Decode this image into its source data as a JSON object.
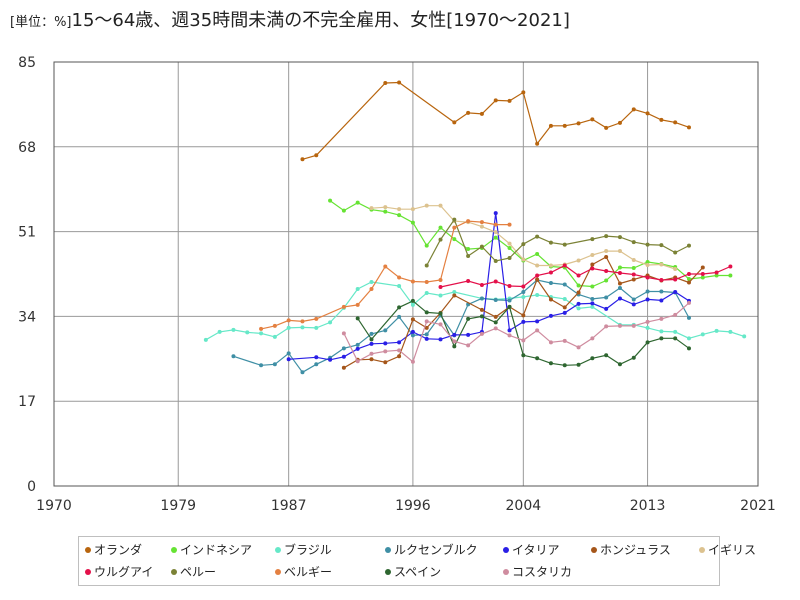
{
  "chart_data": {
    "type": "line",
    "title": "15～64歳、週35時間未満の不完全雇用、女性[1970～2021]",
    "unit_label": "[単位：%]",
    "xlim": [
      1970,
      2021
    ],
    "ylim": [
      0,
      85
    ],
    "x_ticks": [
      1970,
      1979,
      1987,
      1996,
      2004,
      2013,
      2021
    ],
    "y_ticks": [
      0,
      17,
      34,
      51,
      68,
      85
    ],
    "grid": true,
    "legend_position": "bottom",
    "series": [
      {
        "name": "オランダ",
        "color": "#b8650e",
        "x": [
          1988,
          1989,
          1994,
          1995,
          1999,
          2000,
          2001,
          2002,
          2003,
          2004,
          2005,
          2006,
          2007,
          2008,
          2009,
          2010,
          2011,
          2012,
          2013,
          2014,
          2015,
          2016
        ],
        "y": [
          65.5,
          66.3,
          80.8,
          80.9,
          72.9,
          74.8,
          74.6,
          77.3,
          77.2,
          78.9,
          68.6,
          72.2,
          72.2,
          72.7,
          73.5,
          71.8,
          72.8,
          75.5,
          74.7,
          73.4,
          72.9,
          71.9
        ]
      },
      {
        "name": "インドネシア",
        "color": "#66e333",
        "x": [
          1990,
          1991,
          1992,
          1993,
          1994,
          1995,
          1996,
          1997,
          1998,
          1999,
          2000,
          2001,
          2002,
          2003,
          2004,
          2005,
          2006,
          2007,
          2008,
          2009,
          2010,
          2011,
          2012,
          2013,
          2014,
          2015,
          2016,
          2017,
          2018,
          2019
        ],
        "y": [
          57.2,
          55.2,
          56.8,
          55.4,
          55,
          54.3,
          52.8,
          48.2,
          51.8,
          49.5,
          47.5,
          47.7,
          49.8,
          47.7,
          45.2,
          46.5,
          44,
          43.8,
          40.2,
          40,
          41.2,
          43.8,
          43.7,
          44.9,
          44.5,
          43.9,
          41.5,
          41.8,
          42.2,
          42.2
        ]
      },
      {
        "name": "ブラジル",
        "color": "#66e8c8",
        "x": [
          1981,
          1982,
          1983,
          1984,
          1985,
          1986,
          1987,
          1988,
          1989,
          1990,
          1991,
          1992,
          1993,
          1995,
          1996,
          1997,
          1998,
          1999,
          2001,
          2002,
          2003,
          2004,
          2005,
          2006,
          2007,
          2008,
          2009,
          2011,
          2012,
          2013,
          2014,
          2015,
          2016,
          2017,
          2018,
          2019,
          2020
        ],
        "y": [
          29.3,
          30.9,
          31.3,
          30.8,
          30.6,
          29.9,
          31.7,
          31.8,
          31.7,
          32.8,
          35.7,
          39.5,
          40.9,
          40.1,
          36.3,
          38.7,
          38.2,
          38.9,
          37.6,
          37.4,
          37.6,
          37.9,
          38.3,
          37.9,
          37.5,
          35.6,
          35.9,
          32.3,
          32.3,
          31.7,
          31,
          30.9,
          29.6,
          30.4,
          31.1,
          30.9,
          30
        ]
      },
      {
        "name": "ルクセンブルク",
        "color": "#3f8fa5",
        "x": [
          1983,
          1985,
          1986,
          1987,
          1988,
          1989,
          1990,
          1991,
          1992,
          1993,
          1994,
          1995,
          1996,
          1997,
          1998,
          1999,
          2000,
          2001,
          2002,
          2003,
          2004,
          2005,
          2006,
          2007,
          2008,
          2009,
          2010,
          2011,
          2012,
          2013,
          2014,
          2015,
          2016
        ],
        "y": [
          26,
          24.2,
          24.4,
          26.6,
          22.8,
          24.4,
          25.7,
          27.6,
          28.3,
          30.5,
          31.2,
          33.9,
          30.2,
          30.4,
          34.2,
          30.2,
          36.4,
          37.6,
          37.3,
          37.2,
          38.9,
          41.3,
          40.7,
          40.4,
          38.4,
          37.5,
          37.8,
          39.7,
          37.4,
          39,
          39,
          38.8,
          33.7
        ]
      },
      {
        "name": "イタリア",
        "color": "#2a1fe6",
        "x": [
          1987,
          1989,
          1990,
          1991,
          1992,
          1993,
          1994,
          1995,
          1996,
          1997,
          1998,
          1999,
          2000,
          2001,
          2002,
          2003,
          2004,
          2005,
          2006,
          2007,
          2008,
          2009,
          2010,
          2011,
          2012,
          2013,
          2014,
          2015,
          2016
        ],
        "y": [
          25.4,
          25.8,
          25.3,
          25.9,
          27.5,
          28.5,
          28.6,
          28.8,
          30.9,
          29.5,
          29.4,
          30.3,
          30.3,
          30.9,
          54.7,
          31.2,
          32.9,
          33,
          34.1,
          34.7,
          36.5,
          36.6,
          35.5,
          37.6,
          36.4,
          37.4,
          37.2,
          38.9,
          37.1
        ]
      },
      {
        "name": "ホンジュラス",
        "color": "#a5561a",
        "x": [
          1991,
          1992,
          1993,
          1994,
          1995,
          1996,
          1997,
          1998,
          1999,
          2001,
          2002,
          2003,
          2004,
          2005,
          2006,
          2007,
          2008,
          2009,
          2010,
          2011,
          2012,
          2013,
          2014,
          2015,
          2016,
          2017
        ],
        "y": [
          23.7,
          25.3,
          25.4,
          24.8,
          26,
          33.4,
          31.7,
          34.7,
          38.2,
          35.3,
          33.9,
          35.9,
          34.2,
          41.4,
          37.4,
          35.8,
          38.8,
          44.4,
          45.9,
          40.6,
          41.4,
          42.2,
          41.2,
          41.8,
          40.8,
          43.8
        ]
      },
      {
        "name": "イギリス",
        "color": "#dcc28f",
        "x": [
          1993,
          1994,
          1995,
          1996,
          1997,
          1998,
          1999,
          2000,
          2001,
          2002,
          2003,
          2004,
          2005,
          2006,
          2007,
          2008,
          2009,
          2010,
          2011,
          2012,
          2013,
          2014,
          2015
        ],
        "y": [
          55.7,
          55.9,
          55.5,
          55.5,
          56.2,
          56.2,
          53.1,
          52.9,
          52,
          50.9,
          48.6,
          45.4,
          44.2,
          44.2,
          44.4,
          45.2,
          46.3,
          47.1,
          47.1,
          45.3,
          44.3,
          44.4,
          43.5
        ]
      },
      {
        "name": "ウルグアイ",
        "color": "#e4104a",
        "x": [
          1998,
          2000,
          2001,
          2002,
          2003,
          2004,
          2005,
          2006,
          2007,
          2008,
          2009,
          2010,
          2011,
          2012,
          2013,
          2014,
          2015,
          2016,
          2017,
          2018,
          2019
        ],
        "y": [
          39.9,
          41.1,
          40.3,
          41,
          40.1,
          40,
          42.2,
          42.8,
          44.2,
          42.2,
          43.6,
          43.1,
          42.7,
          42.4,
          41.8,
          41.3,
          41.4,
          42.5,
          42.5,
          42.8,
          44
        ]
      },
      {
        "name": "ペルー",
        "color": "#7b8236",
        "x": [
          1997,
          1998,
          1999,
          2000,
          2001,
          2002,
          2003,
          2004,
          2005,
          2006,
          2007,
          2009,
          2010,
          2011,
          2012,
          2013,
          2014,
          2015,
          2016
        ],
        "y": [
          44.2,
          49.4,
          53.4,
          46.1,
          48,
          45.1,
          45.7,
          48.5,
          50,
          48.8,
          48.4,
          49.5,
          50.1,
          49.9,
          48.9,
          48.4,
          48.3,
          46.8,
          48.2
        ]
      },
      {
        "name": "ベルギー",
        "color": "#e48041",
        "x": [
          1985,
          1986,
          1987,
          1988,
          1989,
          1991,
          1992,
          1993,
          1994,
          1995,
          1996,
          1997,
          1998,
          1999,
          2000,
          2001,
          2002,
          2003
        ],
        "y": [
          31.5,
          32.1,
          33.2,
          33,
          33.5,
          35.9,
          36.3,
          39.5,
          44,
          41.8,
          41,
          40.9,
          41.3,
          51.8,
          53.1,
          52.9,
          52.4,
          52.4
        ]
      },
      {
        "name": "スペイン",
        "color": "#2e6630",
        "x": [
          1992,
          1993,
          1995,
          1996,
          1997,
          1998,
          1999,
          2000,
          2001,
          2002,
          2003,
          2004,
          2005,
          2006,
          2007,
          2008,
          2009,
          2010,
          2011,
          2012,
          2013,
          2014,
          2015,
          2016
        ],
        "y": [
          33.6,
          29.4,
          35.8,
          37.1,
          34.8,
          34.6,
          28,
          33.5,
          34,
          32.8,
          35.9,
          26.2,
          25.6,
          24.6,
          24.2,
          24.3,
          25.6,
          26.2,
          24.4,
          25.7,
          28.8,
          29.6,
          29.6,
          27.6
        ]
      },
      {
        "name": "コスタリカ",
        "color": "#cf8c9f",
        "x": [
          1991,
          1992,
          1993,
          1994,
          1995,
          1996,
          1997,
          1998,
          1999,
          2000,
          2001,
          2002,
          2003,
          2004,
          2005,
          2006,
          2007,
          2008,
          2009,
          2010,
          2011,
          2012,
          2013,
          2014,
          2015,
          2016
        ],
        "y": [
          30.6,
          25,
          26.5,
          27,
          27.2,
          24.9,
          33,
          32.4,
          29,
          28.2,
          30.5,
          31.6,
          30.2,
          29.2,
          31.2,
          28.8,
          29.1,
          27.8,
          29.6,
          32,
          32.1,
          32.1,
          32.9,
          33.5,
          34.3,
          36.7
        ]
      }
    ]
  }
}
